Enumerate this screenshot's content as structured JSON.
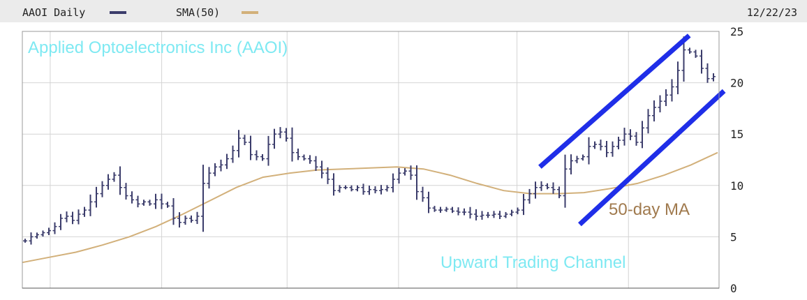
{
  "header": {
    "legend_price_label": "AAOI Daily",
    "legend_sma_label": "SMA(50)",
    "date": "12/22/23"
  },
  "annotations": {
    "title": "Applied Optoelectronics Inc (AAOI)",
    "channel": "Upward Trading Channel",
    "ma": "50-day MA"
  },
  "colors": {
    "price": "#3b3c6b",
    "sma": "#d2b07a",
    "channel": "#1f2ee8",
    "title_text": "#7ee9f2",
    "ma_text": "#a07a4e",
    "grid": "#d4d4d4",
    "header_bg": "#ebebeb"
  },
  "chart_data": {
    "type": "ohlc",
    "title": "Applied Optoelectronics Inc (AAOI)",
    "series": [
      {
        "name": "AAOI Daily",
        "values": [
          4.6,
          5.0,
          5.2,
          5.4,
          5.6,
          6.0,
          6.8,
          7.0,
          6.6,
          7.2,
          7.6,
          8.4,
          9.2,
          10.0,
          10.6,
          11.0,
          9.8,
          9.0,
          8.6,
          8.2,
          8.4,
          8.2,
          8.6,
          8.2,
          8.0,
          6.8,
          6.4,
          6.8,
          6.6,
          7.0,
          10.2,
          11.2,
          11.8,
          12.0,
          12.6,
          13.4,
          14.6,
          14.2,
          13.0,
          12.8,
          12.6,
          14.0,
          15.0,
          15.2,
          14.6,
          13.2,
          12.8,
          12.6,
          12.4,
          11.8,
          11.2,
          10.6,
          9.5,
          9.8,
          9.8,
          9.6,
          9.8,
          9.4,
          9.6,
          9.5,
          9.6,
          9.8,
          10.6,
          11.2,
          11.4,
          11.0,
          9.4,
          8.8,
          7.8,
          7.6,
          7.6,
          7.7,
          7.5,
          7.4,
          7.4,
          7.2,
          7.0,
          7.1,
          7.1,
          7.2,
          7.0,
          7.2,
          7.4,
          7.6,
          8.6,
          9.2,
          9.8,
          10.0,
          9.8,
          9.6,
          9.0,
          11.6,
          12.4,
          12.6,
          12.8,
          13.8,
          14.0,
          13.8,
          13.2,
          13.8,
          14.4,
          15.0,
          14.8,
          14.2,
          15.6,
          16.8,
          17.6,
          18.2,
          18.8,
          19.6,
          21.2,
          23.2,
          23.0,
          22.6,
          21.4,
          20.4,
          20.6
        ],
        "approx_range": [
          4.2,
          24.2
        ]
      },
      {
        "name": "SMA(50)",
        "values": [
          2.5,
          3.0,
          3.5,
          4.2,
          5.0,
          6.0,
          7.2,
          8.5,
          9.8,
          10.8,
          11.2,
          11.5,
          11.6,
          11.7,
          11.8,
          11.6,
          11.0,
          10.2,
          9.5,
          9.2,
          9.2,
          9.3,
          9.7,
          10.2,
          11.0,
          12.0,
          13.2
        ]
      }
    ],
    "annotations": [
      {
        "text": "50-day MA"
      },
      {
        "text": "Upward Trading Channel"
      }
    ],
    "channel_lines": [
      {
        "from": {
          "bar": 104,
          "y": 11.8
        },
        "to": {
          "bar": 134,
          "y": 24.6
        }
      },
      {
        "from": {
          "bar": 112,
          "y": 6.2
        },
        "to": {
          "bar": 141,
          "y": 19.2
        }
      }
    ],
    "ylim": [
      0,
      25
    ],
    "y_ticks": [
      0,
      5,
      10,
      15,
      20,
      25
    ],
    "xlim": [
      0,
      140
    ],
    "grid": true
  }
}
